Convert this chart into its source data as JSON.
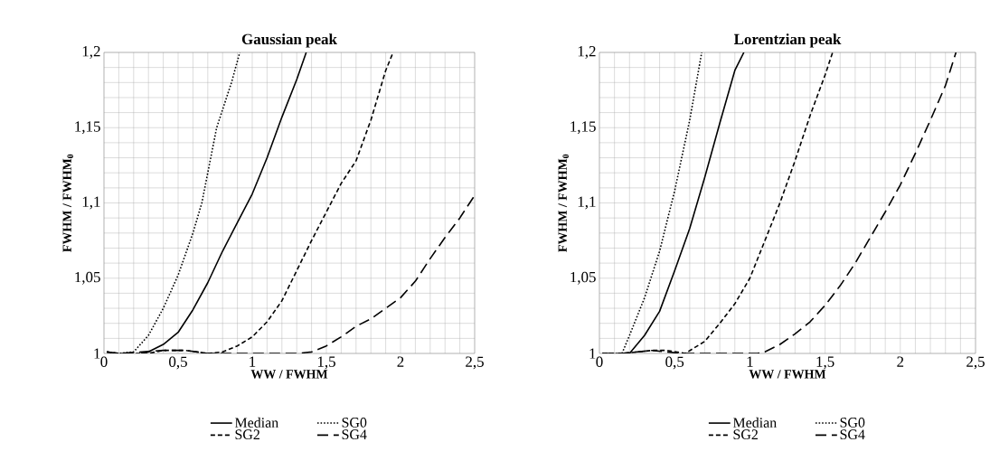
{
  "chart_data": [
    {
      "type": "line",
      "title": "Gaussian peak",
      "xlabel": "WW / FWHM",
      "ylabel": "FWHM / FWHM$_{0}$",
      "xlim": [
        0,
        2.5
      ],
      "ylim": [
        1,
        1.2
      ],
      "xticks": [
        0,
        {
          "value": 0.5,
          "label": "0,5"
        },
        1,
        {
          "value": 1.5,
          "label": "1,5"
        },
        2,
        {
          "value": 2.5,
          "label": "2,5"
        }
      ],
      "yticks": [
        1,
        {
          "value": 1.05,
          "label": "1,05"
        },
        {
          "value": 1.1,
          "label": "1,1"
        },
        {
          "value": 1.15,
          "label": "1,15"
        },
        {
          "value": 1.2,
          "label": "1,2"
        }
      ],
      "grid": true,
      "legend": "bottom",
      "series": [
        {
          "name": "Median",
          "color": "#000000",
          "line_style": "solid",
          "x": [
            0.25,
            0.3,
            0.4,
            0.5,
            0.6,
            0.7,
            0.8,
            0.9,
            1.0,
            1.1,
            1.2,
            1.3,
            1.364
          ],
          "values": [
            1.0,
            1.001,
            1.006,
            1.014,
            1.029,
            1.047,
            1.068,
            1.087,
            1.106,
            1.13,
            1.157,
            1.182,
            1.2
          ]
        },
        {
          "name": "SG0",
          "color": "#000000",
          "line_style": "dotted",
          "x": [
            0.02,
            0.1,
            0.2,
            0.3,
            0.4,
            0.5,
            0.6,
            0.66,
            0.76,
            0.86,
            0.916
          ],
          "values": [
            1.001,
            1.0,
            1.001,
            1.012,
            1.03,
            1.052,
            1.08,
            1.1,
            1.15,
            1.18,
            1.2
          ]
        },
        {
          "name": "SG2",
          "color": "#000000",
          "line_style": "dashed",
          "x": [
            0.02,
            0.1,
            0.3,
            0.4,
            0.55,
            0.7,
            0.8,
            0.9,
            1.0,
            1.1,
            1.2,
            1.3,
            1.4,
            1.5,
            1.6,
            1.7,
            1.8,
            1.9,
            1.95
          ],
          "values": [
            1.001,
            1.0,
            1.0,
            1.002,
            1.002,
            1.0,
            1.001,
            1.005,
            1.011,
            1.021,
            1.035,
            1.055,
            1.075,
            1.094,
            1.113,
            1.128,
            1.155,
            1.188,
            1.2
          ]
        },
        {
          "name": "SG4",
          "color": "#000000",
          "line_style": "long dashed",
          "x": [
            0.02,
            0.1,
            0.4,
            0.55,
            0.7,
            1.0,
            1.3,
            1.4,
            1.5,
            1.6,
            1.7,
            1.8,
            1.9,
            2.0,
            2.1,
            2.2,
            2.3,
            2.4,
            2.5
          ],
          "values": [
            1.001,
            1.0,
            1.002,
            1.002,
            1.0,
            1.0,
            1.0,
            1.001,
            1.005,
            1.011,
            1.018,
            1.023,
            1.03,
            1.037,
            1.048,
            1.063,
            1.077,
            1.09,
            1.105
          ]
        }
      ]
    },
    {
      "type": "line",
      "title": "Lorentzian peak",
      "xlabel": "WW / FWHM",
      "ylabel": "FWHM / FWHM$_{0}$",
      "xlim": [
        0,
        2.5
      ],
      "ylim": [
        1,
        1.2
      ],
      "xticks": [
        0,
        {
          "value": 0.5,
          "label": "0,5"
        },
        1,
        {
          "value": 1.5,
          "label": "1,5"
        },
        2,
        {
          "value": 2.5,
          "label": "2,5"
        }
      ],
      "yticks": [
        1,
        {
          "value": 1.05,
          "label": "1,05"
        },
        {
          "value": 1.1,
          "label": "1,1"
        },
        {
          "value": 1.15,
          "label": "1,15"
        },
        {
          "value": 1.2,
          "label": "1,2"
        }
      ],
      "grid": true,
      "legend": "bottom",
      "series": [
        {
          "name": "Median",
          "color": "#000000",
          "line_style": "solid",
          "x": [
            0.2,
            0.3,
            0.4,
            0.5,
            0.6,
            0.7,
            0.8,
            0.9,
            0.96
          ],
          "values": [
            1.0,
            1.012,
            1.028,
            1.055,
            1.083,
            1.117,
            1.153,
            1.188,
            1.2
          ]
        },
        {
          "name": "SG0",
          "color": "#000000",
          "line_style": "dotted",
          "x": [
            0.02,
            0.15,
            0.2,
            0.3,
            0.4,
            0.5,
            0.6,
            0.68
          ],
          "values": [
            1.0,
            1.0,
            1.012,
            1.037,
            1.068,
            1.108,
            1.155,
            1.2
          ]
        },
        {
          "name": "SG2",
          "color": "#000000",
          "line_style": "dashed",
          "x": [
            0.02,
            0.15,
            0.35,
            0.45,
            0.57,
            0.7,
            0.8,
            0.9,
            1.0,
            1.1,
            1.2,
            1.3,
            1.4,
            1.5,
            1.55
          ],
          "values": [
            1.0,
            1.0,
            1.002,
            1.002,
            1.0,
            1.008,
            1.02,
            1.033,
            1.05,
            1.075,
            1.1,
            1.128,
            1.158,
            1.185,
            1.2
          ]
        },
        {
          "name": "SG4",
          "color": "#000000",
          "line_style": "long dashed",
          "x": [
            0.02,
            0.15,
            0.35,
            0.55,
            1.05,
            1.1,
            1.2,
            1.3,
            1.4,
            1.5,
            1.6,
            1.7,
            1.8,
            1.9,
            2.0,
            2.1,
            2.2,
            2.3,
            2.37
          ],
          "values": [
            1.0,
            1.0,
            1.002,
            1.0,
            1.0,
            1.001,
            1.006,
            1.013,
            1.021,
            1.032,
            1.045,
            1.06,
            1.077,
            1.094,
            1.112,
            1.133,
            1.155,
            1.178,
            1.2
          ]
        }
      ]
    }
  ]
}
